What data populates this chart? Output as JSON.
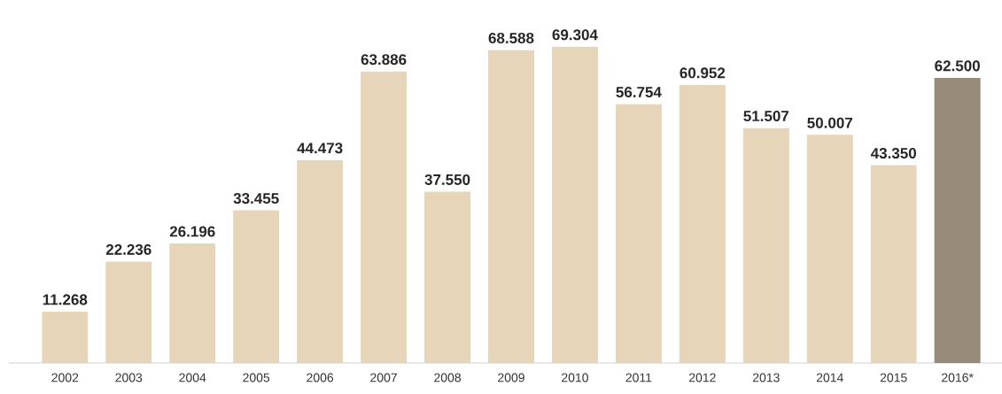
{
  "chart_data": {
    "type": "bar",
    "categories": [
      "2002",
      "2003",
      "2004",
      "2005",
      "2006",
      "2007",
      "2008",
      "2009",
      "2010",
      "2011",
      "2012",
      "2013",
      "2014",
      "2015",
      "2016*"
    ],
    "values": [
      11268,
      22236,
      26196,
      33455,
      44473,
      63886,
      37550,
      68588,
      69304,
      56754,
      60952,
      51507,
      50007,
      43350,
      62500
    ],
    "value_labels": [
      "11.268",
      "22.236",
      "26.196",
      "33.455",
      "44.473",
      "63.886",
      "37.550",
      "68.588",
      "69.304",
      "56.754",
      "60.952",
      "51.507",
      "50.007",
      "43.350",
      "62.500"
    ],
    "colors": [
      "#e6d5b8",
      "#e6d5b8",
      "#e6d5b8",
      "#e6d5b8",
      "#e6d5b8",
      "#e6d5b8",
      "#e6d5b8",
      "#e6d5b8",
      "#e6d5b8",
      "#e6d5b8",
      "#e6d5b8",
      "#e6d5b8",
      "#e6d5b8",
      "#e6d5b8",
      "#968b78"
    ],
    "legend": false
  }
}
